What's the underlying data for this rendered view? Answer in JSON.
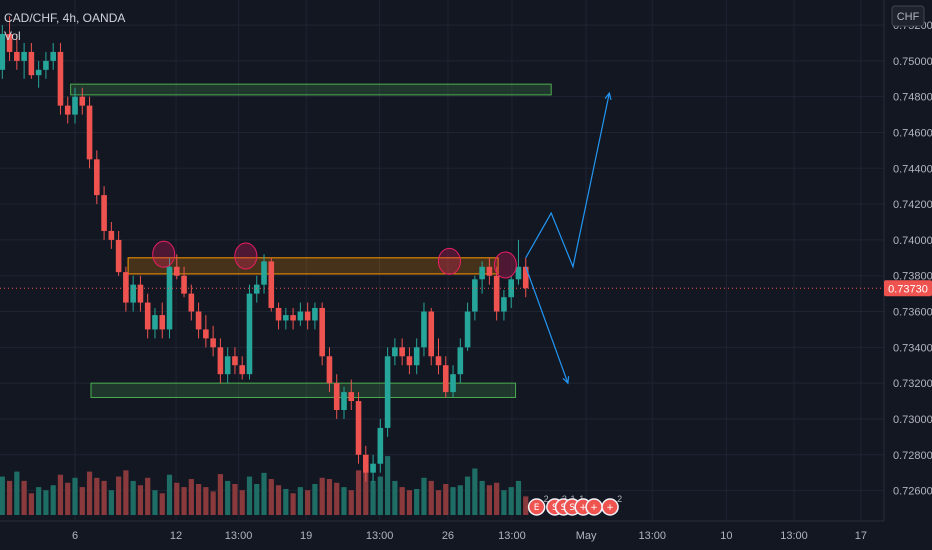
{
  "header": {
    "symbol_line": "CAD/CHF, 4h, OANDA",
    "volume_label": "Vol"
  },
  "currency_button": "CHF",
  "colors": {
    "background": "#131722",
    "grid": "#1f2433",
    "up": "#26a69a",
    "down": "#ef5350",
    "up_volume": "#1e6e66",
    "down_volume": "#8a3a3d",
    "zone_green": "#4caf50",
    "zone_orange": "#ff9800",
    "arrow": "#2196f3",
    "circle": "#e91e63"
  },
  "chart_data": {
    "type": "candlestick",
    "symbol": "CAD/CHF",
    "timeframe": "4h",
    "source": "OANDA",
    "ylim": [
      0.7243,
      0.7534
    ],
    "xlim": [
      0,
      120
    ],
    "y_ticks": [
      "0.75200",
      "0.75000",
      "0.74800",
      "0.74600",
      "0.74400",
      "0.74200",
      "0.74000",
      "0.73800",
      "0.73600",
      "0.73400",
      "0.73200",
      "0.73000",
      "0.72800",
      "0.72600"
    ],
    "y_tick_values": [
      0.752,
      0.75,
      0.748,
      0.746,
      0.744,
      0.742,
      0.74,
      0.738,
      0.736,
      0.734,
      0.732,
      0.73,
      0.728,
      0.726
    ],
    "x_ticks": [
      {
        "label": "6",
        "t": 0
      },
      {
        "label": "12",
        "t": 13.9
      },
      {
        "label": "13:00",
        "t": 22.5
      },
      {
        "label": "19",
        "t": 31.8
      },
      {
        "label": "13:00",
        "t": 41.9
      },
      {
        "label": "26",
        "t": 51.3
      },
      {
        "label": "13:00",
        "t": 60.1
      },
      {
        "label": "May",
        "t": 70.3
      },
      {
        "label": "13:00",
        "t": 79.4
      },
      {
        "label": "10",
        "t": 89.6
      },
      {
        "label": "13:00",
        "t": 98.9
      },
      {
        "label": "17",
        "t": 108.1
      }
    ],
    "last_price": "0.73730",
    "last_price_value": 0.7373,
    "candles": [
      [
        -12,
        0.7515,
        0.7528,
        0.7505,
        0.751
      ],
      [
        -11,
        0.751,
        0.7522,
        0.749,
        0.7495
      ],
      [
        -10,
        0.7495,
        0.752,
        0.749,
        0.7515
      ],
      [
        -9,
        0.7515,
        0.7525,
        0.75,
        0.7505
      ],
      [
        -8,
        0.7505,
        0.7515,
        0.7495,
        0.75
      ],
      [
        -7,
        0.75,
        0.751,
        0.749,
        0.7505
      ],
      [
        -6,
        0.7505,
        0.751,
        0.749,
        0.7492
      ],
      [
        -5,
        0.7492,
        0.75,
        0.7485,
        0.7495
      ],
      [
        -4,
        0.7495,
        0.7505,
        0.749,
        0.75
      ],
      [
        -3,
        0.75,
        0.751,
        0.7495,
        0.7505
      ],
      [
        -2,
        0.7505,
        0.751,
        0.747,
        0.7475
      ],
      [
        -1,
        0.7475,
        0.748,
        0.7465,
        0.747
      ],
      [
        0,
        0.747,
        0.7485,
        0.7465,
        0.748
      ],
      [
        1,
        0.748,
        0.7485,
        0.747,
        0.7475
      ],
      [
        2,
        0.7475,
        0.748,
        0.744,
        0.7445
      ],
      [
        3,
        0.7445,
        0.745,
        0.742,
        0.7425
      ],
      [
        4,
        0.7425,
        0.743,
        0.74,
        0.7405
      ],
      [
        5,
        0.7405,
        0.741,
        0.7395,
        0.74
      ],
      [
        6,
        0.74,
        0.7405,
        0.738,
        0.7382
      ],
      [
        7,
        0.7382,
        0.7385,
        0.736,
        0.7365
      ],
      [
        8,
        0.7365,
        0.738,
        0.736,
        0.7375
      ],
      [
        9,
        0.7375,
        0.738,
        0.736,
        0.7365
      ],
      [
        10,
        0.7365,
        0.737,
        0.7345,
        0.735
      ],
      [
        11,
        0.735,
        0.7362,
        0.7345,
        0.7358
      ],
      [
        12,
        0.7358,
        0.7365,
        0.7345,
        0.735
      ],
      [
        13,
        0.735,
        0.739,
        0.7345,
        0.7385
      ],
      [
        14,
        0.7385,
        0.7392,
        0.7378,
        0.738
      ],
      [
        15,
        0.738,
        0.7385,
        0.7368,
        0.737
      ],
      [
        16,
        0.737,
        0.7375,
        0.7355,
        0.736
      ],
      [
        17,
        0.736,
        0.7365,
        0.7345,
        0.735
      ],
      [
        18,
        0.735,
        0.7358,
        0.734,
        0.7345
      ],
      [
        19,
        0.7345,
        0.7352,
        0.7335,
        0.734
      ],
      [
        20,
        0.734,
        0.7345,
        0.732,
        0.7325
      ],
      [
        21,
        0.7325,
        0.734,
        0.732,
        0.7335
      ],
      [
        22,
        0.7335,
        0.734,
        0.7325,
        0.733
      ],
      [
        23,
        0.733,
        0.7335,
        0.7322,
        0.7325
      ],
      [
        24,
        0.7325,
        0.7375,
        0.7322,
        0.737
      ],
      [
        25,
        0.737,
        0.738,
        0.7365,
        0.7375
      ],
      [
        26,
        0.7375,
        0.7392,
        0.737,
        0.7388
      ],
      [
        27,
        0.7388,
        0.739,
        0.736,
        0.7362
      ],
      [
        28,
        0.7362,
        0.7365,
        0.735,
        0.7355
      ],
      [
        29,
        0.7355,
        0.7362,
        0.735,
        0.7358
      ],
      [
        30,
        0.7358,
        0.7362,
        0.735,
        0.7355
      ],
      [
        31,
        0.7355,
        0.7365,
        0.7352,
        0.736
      ],
      [
        32,
        0.736,
        0.7365,
        0.735,
        0.7355
      ],
      [
        33,
        0.7355,
        0.7365,
        0.735,
        0.7362
      ],
      [
        34,
        0.7362,
        0.7365,
        0.733,
        0.7335
      ],
      [
        35,
        0.7335,
        0.734,
        0.7315,
        0.732
      ],
      [
        36,
        0.732,
        0.7325,
        0.73,
        0.7305
      ],
      [
        37,
        0.7305,
        0.7318,
        0.73,
        0.7315
      ],
      [
        38,
        0.7315,
        0.7322,
        0.7305,
        0.731
      ],
      [
        39,
        0.731,
        0.7315,
        0.7275,
        0.728
      ],
      [
        40,
        0.728,
        0.7285,
        0.7265,
        0.727
      ],
      [
        41,
        0.727,
        0.728,
        0.7265,
        0.7275
      ],
      [
        42,
        0.7275,
        0.73,
        0.727,
        0.7295
      ],
      [
        43,
        0.7295,
        0.734,
        0.729,
        0.7335
      ],
      [
        44,
        0.7335,
        0.7345,
        0.733,
        0.734
      ],
      [
        45,
        0.734,
        0.7345,
        0.733,
        0.7335
      ],
      [
        46,
        0.7335,
        0.734,
        0.7325,
        0.733
      ],
      [
        47,
        0.733,
        0.7345,
        0.7325,
        0.734
      ],
      [
        48,
        0.734,
        0.7365,
        0.7335,
        0.736
      ],
      [
        49,
        0.736,
        0.7362,
        0.733,
        0.7335
      ],
      [
        50,
        0.7335,
        0.7345,
        0.7325,
        0.733
      ],
      [
        51,
        0.733,
        0.7335,
        0.7312,
        0.7315
      ],
      [
        52,
        0.7315,
        0.733,
        0.7312,
        0.7325
      ],
      [
        53,
        0.7325,
        0.7345,
        0.732,
        0.734
      ],
      [
        54,
        0.734,
        0.7365,
        0.7338,
        0.736
      ],
      [
        55,
        0.736,
        0.738,
        0.7355,
        0.7378
      ],
      [
        56,
        0.7378,
        0.7388,
        0.737,
        0.7385
      ],
      [
        57,
        0.7385,
        0.739,
        0.7375,
        0.738
      ],
      [
        58,
        0.738,
        0.7385,
        0.7355,
        0.736
      ],
      [
        59,
        0.736,
        0.7372,
        0.7355,
        0.7368
      ],
      [
        60,
        0.7368,
        0.738,
        0.7362,
        0.7378
      ],
      [
        61,
        0.7378,
        0.74,
        0.7375,
        0.7385
      ],
      [
        62,
        0.7385,
        0.739,
        0.7368,
        0.7373
      ]
    ],
    "volumes": [
      [
        -12,
        0.55,
        0
      ],
      [
        -11,
        0.85,
        0
      ],
      [
        -10,
        0.62,
        1
      ],
      [
        -9,
        0.55,
        0
      ],
      [
        -8,
        0.7,
        1
      ],
      [
        -7,
        0.55,
        0
      ],
      [
        -6,
        0.35,
        0
      ],
      [
        -5,
        0.45,
        1
      ],
      [
        -4,
        0.4,
        1
      ],
      [
        -3,
        0.48,
        1
      ],
      [
        -2,
        0.65,
        0
      ],
      [
        -1,
        0.52,
        0
      ],
      [
        0,
        0.6,
        1
      ],
      [
        1,
        0.45,
        0
      ],
      [
        2,
        0.7,
        0
      ],
      [
        3,
        0.6,
        0
      ],
      [
        4,
        0.55,
        0
      ],
      [
        5,
        0.4,
        1
      ],
      [
        6,
        0.62,
        0
      ],
      [
        7,
        0.72,
        0
      ],
      [
        8,
        0.55,
        1
      ],
      [
        9,
        0.48,
        0
      ],
      [
        10,
        0.6,
        0
      ],
      [
        11,
        0.4,
        1
      ],
      [
        12,
        0.35,
        0
      ],
      [
        13,
        0.65,
        1
      ],
      [
        14,
        0.52,
        0
      ],
      [
        15,
        0.45,
        0
      ],
      [
        16,
        0.58,
        0
      ],
      [
        17,
        0.5,
        0
      ],
      [
        18,
        0.45,
        0
      ],
      [
        19,
        0.38,
        0
      ],
      [
        20,
        0.66,
        0
      ],
      [
        21,
        0.55,
        1
      ],
      [
        22,
        0.5,
        0
      ],
      [
        23,
        0.4,
        0
      ],
      [
        24,
        0.62,
        1
      ],
      [
        25,
        0.5,
        1
      ],
      [
        26,
        0.68,
        1
      ],
      [
        27,
        0.58,
        0
      ],
      [
        28,
        0.48,
        0
      ],
      [
        29,
        0.42,
        1
      ],
      [
        30,
        0.35,
        0
      ],
      [
        31,
        0.45,
        1
      ],
      [
        32,
        0.4,
        0
      ],
      [
        33,
        0.5,
        1
      ],
      [
        34,
        0.6,
        0
      ],
      [
        35,
        0.58,
        0
      ],
      [
        36,
        0.52,
        0
      ],
      [
        37,
        0.45,
        1
      ],
      [
        38,
        0.4,
        0
      ],
      [
        39,
        0.72,
        0
      ],
      [
        40,
        0.8,
        0
      ],
      [
        41,
        0.55,
        1
      ],
      [
        42,
        0.62,
        1
      ],
      [
        43,
        0.95,
        1
      ],
      [
        44,
        0.55,
        1
      ],
      [
        45,
        0.45,
        0
      ],
      [
        46,
        0.4,
        0
      ],
      [
        47,
        0.42,
        1
      ],
      [
        48,
        0.6,
        1
      ],
      [
        49,
        0.55,
        0
      ],
      [
        50,
        0.4,
        0
      ],
      [
        51,
        0.5,
        0
      ],
      [
        52,
        0.45,
        1
      ],
      [
        53,
        0.48,
        1
      ],
      [
        54,
        0.62,
        1
      ],
      [
        55,
        0.75,
        1
      ],
      [
        56,
        0.55,
        1
      ],
      [
        57,
        0.48,
        0
      ],
      [
        58,
        0.52,
        0
      ],
      [
        59,
        0.4,
        1
      ],
      [
        60,
        0.45,
        1
      ],
      [
        61,
        0.55,
        1
      ],
      [
        62,
        0.3,
        0
      ]
    ],
    "zones": [
      {
        "color": "green",
        "t1": -0.6,
        "t2": 65.5,
        "y1": 0.7481,
        "y2": 0.7487
      },
      {
        "color": "orange",
        "t1": 7.3,
        "t2": 58.2,
        "y1": 0.7381,
        "y2": 0.739
      },
      {
        "color": "green",
        "t1": 2.2,
        "t2": 60.6,
        "y1": 0.7312,
        "y2": 0.732
      }
    ],
    "circles": [
      {
        "t": 12.2,
        "y": 0.7392
      },
      {
        "t": 23.5,
        "y": 0.7391
      },
      {
        "t": 51.5,
        "y": 0.7388
      },
      {
        "t": 59.2,
        "y": 0.7386
      }
    ],
    "arrows": [
      {
        "points": [
          [
            62,
            0.739
          ],
          [
            65.5,
            0.7415
          ],
          [
            68.5,
            0.7385
          ],
          [
            73.5,
            0.7482
          ]
        ]
      },
      {
        "points": [
          [
            62,
            0.7385
          ],
          [
            67.8,
            0.732
          ]
        ]
      }
    ],
    "badges": [
      {
        "t": 63.5,
        "icon": "earnings",
        "count": "2"
      },
      {
        "t": 66.0,
        "icon": "split",
        "count": "3"
      },
      {
        "t": 67.2,
        "icon": "split",
        "count": "1"
      },
      {
        "t": 68.4,
        "icon": "split",
        "count": "1"
      },
      {
        "t": 69.9,
        "icon": "dividend",
        "count": ""
      },
      {
        "t": 71.4,
        "icon": "dividend",
        "count": ""
      },
      {
        "t": 73.6,
        "icon": "dividend",
        "count": "2"
      }
    ]
  }
}
